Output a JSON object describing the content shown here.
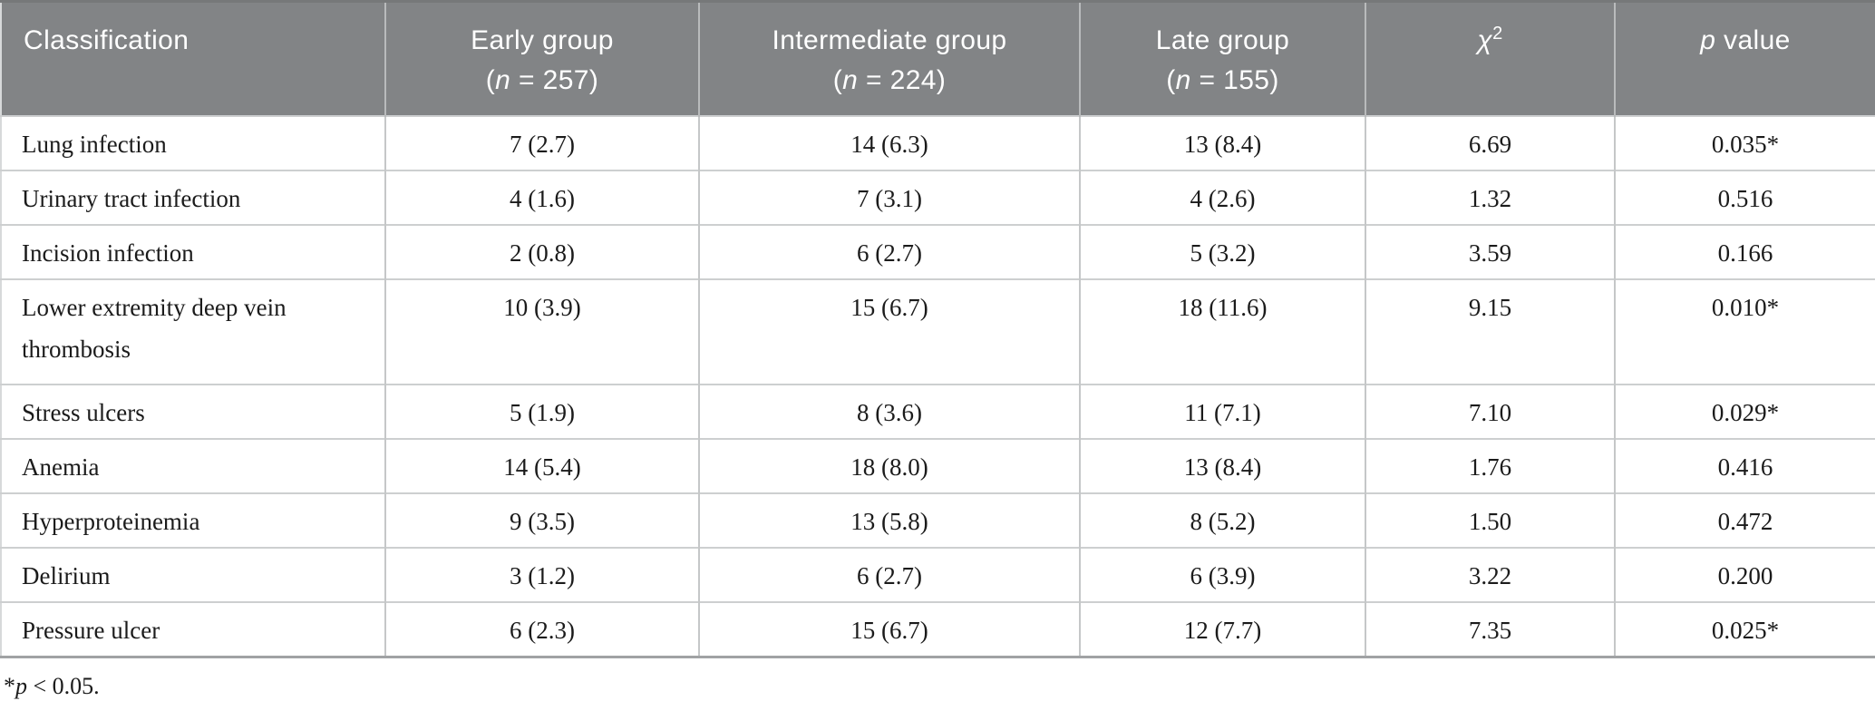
{
  "colors": {
    "header_bg": "#828486",
    "header_text": "#ffffff",
    "body_text": "#1b1b1b",
    "row_line": "#cdcfd0",
    "column_line": "#c5c7c8",
    "bottom_border": "#a0a2a4"
  },
  "table": {
    "columns": [
      {
        "key": "classification",
        "label": "Classification"
      },
      {
        "key": "early_group",
        "label": "Early group",
        "sub_pre": "(",
        "sub_italic": "n",
        "sub_post": " = 257)"
      },
      {
        "key": "intermediate_group",
        "label": "Intermediate group",
        "sub_pre": "(",
        "sub_italic": "n",
        "sub_post": " = 224)"
      },
      {
        "key": "late_group",
        "label": "Late group",
        "sub_pre": "(",
        "sub_italic": "n",
        "sub_post": " = 155)"
      },
      {
        "key": "chi_square",
        "symbol": "χ",
        "superscript": "2"
      },
      {
        "key": "p_value",
        "label_italic": "p",
        "label_rest": " value"
      }
    ],
    "rows": [
      {
        "cells": [
          "Lung infection",
          "7 (2.7)",
          "14 (6.3)",
          "13 (8.4)",
          "6.69",
          "0.035*"
        ]
      },
      {
        "cells": [
          "Urinary tract infection",
          "4 (1.6)",
          "7 (3.1)",
          "4 (2.6)",
          "1.32",
          "0.516"
        ]
      },
      {
        "cells": [
          "Incision infection",
          "2 (0.8)",
          "6 (2.7)",
          "5 (3.2)",
          "3.59",
          "0.166"
        ]
      },
      {
        "cells": [
          "Lower extremity deep vein thrombosis",
          "10 (3.9)",
          "15 (6.7)",
          "18 (11.6)",
          "9.15",
          "0.010*"
        ],
        "tall": true
      },
      {
        "cells": [
          "Stress ulcers",
          "5 (1.9)",
          "8 (3.6)",
          "11 (7.1)",
          "7.10",
          "0.029*"
        ]
      },
      {
        "cells": [
          "Anemia",
          "14 (5.4)",
          "18 (8.0)",
          "13 (8.4)",
          "1.76",
          "0.416"
        ]
      },
      {
        "cells": [
          "Hyperproteinemia",
          "9 (3.5)",
          "13 (5.8)",
          "8 (5.2)",
          "1.50",
          "0.472"
        ]
      },
      {
        "cells": [
          "Delirium",
          "3 (1.2)",
          "6 (2.7)",
          "6 (3.9)",
          "3.22",
          "0.200"
        ]
      },
      {
        "cells": [
          "Pressure ulcer",
          "6 (2.3)",
          "15 (6.7)",
          "12 (7.7)",
          "7.35",
          "0.025*"
        ]
      }
    ]
  },
  "footnote": {
    "marker": "*",
    "italic": "p",
    "rest": " < 0.05."
  },
  "chart_data": {
    "type": "table",
    "title": "",
    "columns": [
      "Classification",
      "Early group (n = 257)",
      "Intermediate group (n = 224)",
      "Late group (n = 155)",
      "χ2",
      "p value"
    ],
    "rows": [
      [
        "Lung infection",
        "7 (2.7)",
        "14 (6.3)",
        "13 (8.4)",
        6.69,
        "0.035*"
      ],
      [
        "Urinary tract infection",
        "4 (1.6)",
        "7 (3.1)",
        "4 (2.6)",
        1.32,
        "0.516"
      ],
      [
        "Incision infection",
        "2 (0.8)",
        "6 (2.7)",
        "5 (3.2)",
        3.59,
        "0.166"
      ],
      [
        "Lower extremity deep vein thrombosis",
        "10 (3.9)",
        "15 (6.7)",
        "18 (11.6)",
        9.15,
        "0.010*"
      ],
      [
        "Stress ulcers",
        "5 (1.9)",
        "8 (3.6)",
        "11 (7.1)",
        7.1,
        "0.029*"
      ],
      [
        "Anemia",
        "14 (5.4)",
        "18 (8.0)",
        "13 (8.4)",
        1.76,
        "0.416"
      ],
      [
        "Hyperproteinemia",
        "9 (3.5)",
        "13 (5.8)",
        "8 (5.2)",
        1.5,
        "0.472"
      ],
      [
        "Delirium",
        "3 (1.2)",
        "6 (2.7)",
        "6 (3.9)",
        3.22,
        "0.200"
      ],
      [
        "Pressure ulcer",
        "6 (2.3)",
        "15 (6.7)",
        "12 (7.7)",
        7.35,
        "0.025*"
      ]
    ],
    "footnote": "*p < 0.05."
  }
}
